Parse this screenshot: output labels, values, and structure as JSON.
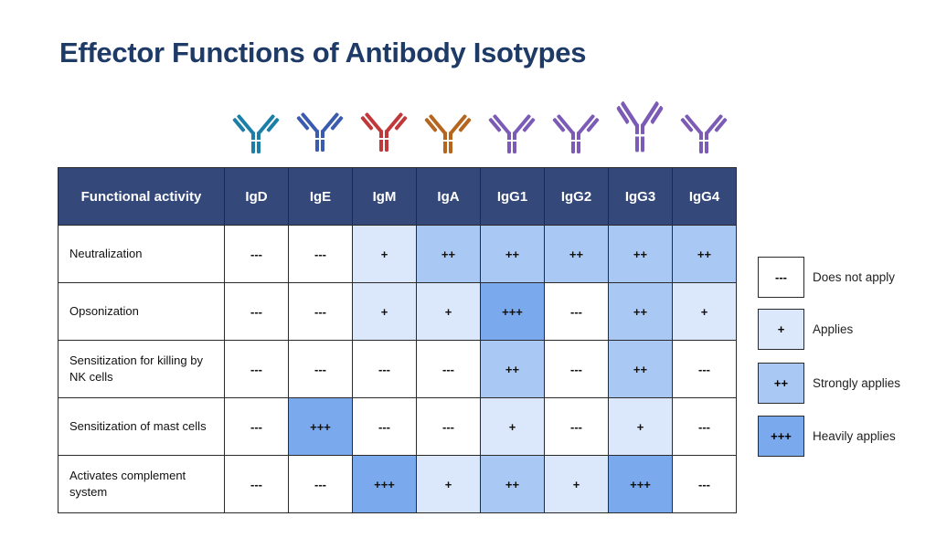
{
  "header": {
    "title": "Effector Functions of Antibody Isotypes"
  },
  "table": {
    "columns": [
      "Functional activity",
      "IgD",
      "IgE",
      "IgM",
      "IgA",
      "IgG1",
      "IgG2",
      "IgG3",
      "IgG4"
    ],
    "rows": [
      [
        "Neutralization",
        "---",
        "---",
        "+",
        "++",
        "++",
        "++",
        "++",
        "++"
      ],
      [
        "Opsonization",
        "---",
        "---",
        "+",
        "+",
        "+++",
        "---",
        "++",
        "+"
      ],
      [
        "Sensitization for killing by NK cells",
        "---",
        "---",
        "---",
        "---",
        "++",
        "---",
        "++",
        "---"
      ],
      [
        "Sensitization of mast cells",
        "---",
        "+++",
        "---",
        "---",
        "+",
        "---",
        "+",
        "---"
      ],
      [
        "Activates complement system",
        "---",
        "---",
        "+++",
        "+",
        "++",
        "+",
        "+++",
        "---"
      ]
    ]
  },
  "legend": {
    "items": [
      {
        "symbol": "---",
        "label": "Does not apply",
        "color": "#ffffff"
      },
      {
        "symbol": "+",
        "label": "Applies",
        "color": "#dbe8fb"
      },
      {
        "symbol": "++",
        "label": "Strongly applies",
        "color": "#a9c8f4"
      },
      {
        "symbol": "+++",
        "label": "Heavily applies",
        "color": "#7aa9ee"
      }
    ]
  }
}
